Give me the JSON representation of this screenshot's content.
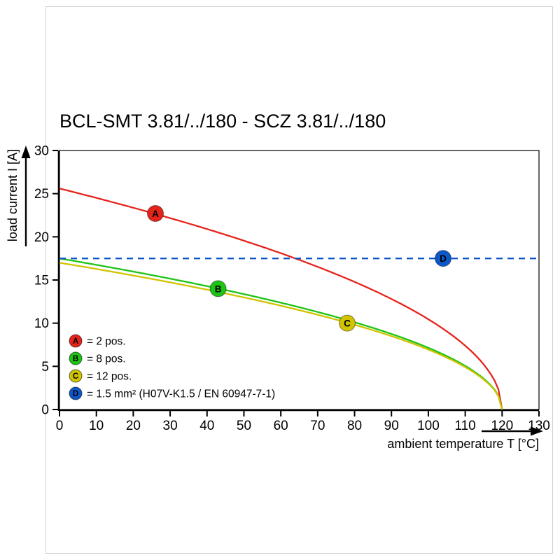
{
  "title": "BCL-SMT 3.81/../180 - SCZ 3.81/../180",
  "axes": {
    "x_label": "ambient temperature T [°C]",
    "y_label": "load current I [A]"
  },
  "chart_data": {
    "type": "line",
    "title": "BCL-SMT 3.81/../180 - SCZ 3.81/../180",
    "xlabel": "ambient temperature T [°C]",
    "ylabel": "load current I [A]",
    "xlim": [
      0,
      130
    ],
    "ylim": [
      0,
      30
    ],
    "xticks": [
      0,
      10,
      20,
      30,
      40,
      50,
      60,
      70,
      80,
      90,
      100,
      110,
      120,
      130
    ],
    "yticks": [
      0,
      5,
      10,
      15,
      20,
      25,
      30
    ],
    "grid": false,
    "legend_position": "bottom-left-inside",
    "series": [
      {
        "id": "A",
        "label": "= 2 pos.",
        "color": "#e5231b",
        "style": "solid",
        "x": [
          0,
          10,
          20,
          30,
          40,
          50,
          60,
          70,
          80,
          90,
          100,
          110,
          120
        ],
        "values": [
          25.6,
          24.5,
          23.4,
          22.2,
          20.9,
          19.6,
          18.1,
          16.5,
          14.8,
          12.8,
          10.5,
          7.4,
          0
        ],
        "model": {
          "i0": 25.6,
          "tmax": 120
        },
        "marker_x": 26,
        "marker_y": 22.7
      },
      {
        "id": "B",
        "label": "= 8 pos.",
        "color": "#1dc414",
        "style": "solid",
        "x": [
          0,
          10,
          20,
          30,
          40,
          50,
          60,
          70,
          80,
          90,
          100,
          110,
          120
        ],
        "values": [
          17.5,
          16.8,
          16.0,
          15.2,
          14.3,
          13.4,
          12.4,
          11.3,
          10.1,
          8.8,
          7.1,
          5.1,
          0
        ],
        "model": {
          "i0": 17.5,
          "tmax": 120
        },
        "marker_x": 43,
        "marker_y": 14.0
      },
      {
        "id": "C",
        "label": "= 12 pos.",
        "color": "#d0c300",
        "style": "solid",
        "x": [
          0,
          10,
          20,
          30,
          40,
          50,
          60,
          70,
          80,
          90,
          100,
          110,
          120
        ],
        "values": [
          17.0,
          16.3,
          15.5,
          14.7,
          13.9,
          13.0,
          12.0,
          11.0,
          9.8,
          8.5,
          6.9,
          4.9,
          0
        ],
        "model": {
          "i0": 17.0,
          "tmax": 120
        },
        "marker_x": 78,
        "marker_y": 10.0
      },
      {
        "id": "D",
        "label": "= 1.5 mm² (H07V-K1.5 / EN 60947-7-1)",
        "color": "#0d57c9",
        "style": "dashed",
        "constant": 17.5,
        "x": [
          0,
          130
        ],
        "values": [
          17.5,
          17.5
        ],
        "marker_x": 104,
        "marker_y": 17.5
      }
    ]
  }
}
